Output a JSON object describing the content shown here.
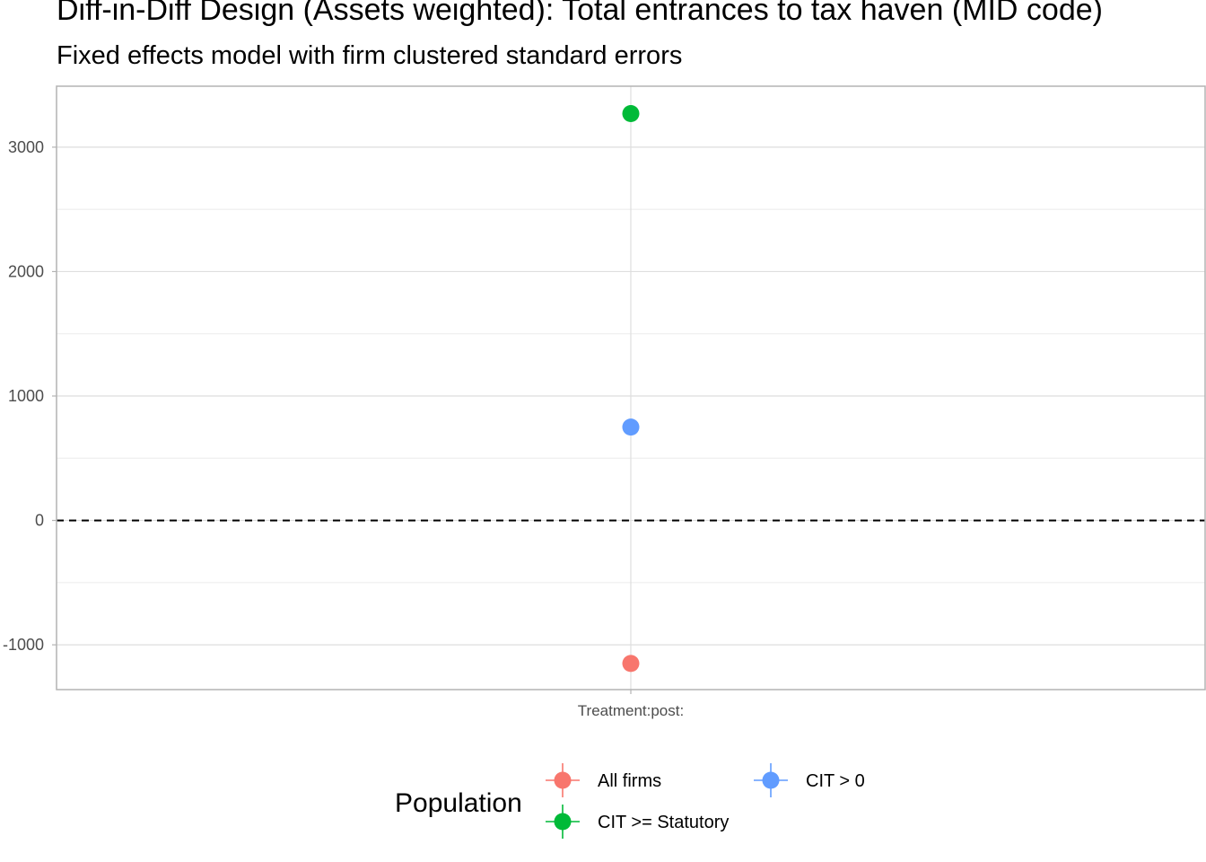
{
  "chart_data": {
    "type": "scatter",
    "title": "Diff-in-Diff Design (Assets weighted): Total entrances to tax haven (MID code)",
    "subtitle": "Fixed effects model with firm clustered standard errors",
    "xlabel": "",
    "ylabel": "",
    "categories": [
      "Treatment:post:"
    ],
    "ylim": [
      -1360,
      3490
    ],
    "y_ticks": [
      -1000,
      0,
      1000,
      2000,
      3000
    ],
    "y_tick_labels": [
      "-1000",
      "0",
      "1000",
      "2000",
      "3000"
    ],
    "reference_line": {
      "y": 0,
      "style": "dashed"
    },
    "grid": true,
    "legend_title": "Population",
    "legend_position": "bottom",
    "series": [
      {
        "name": "All firms",
        "color": "#F8766D",
        "values": [
          -1150
        ]
      },
      {
        "name": "CIT >= Statutory",
        "color": "#00BA38",
        "values": [
          3270
        ]
      },
      {
        "name": "CIT > 0",
        "color": "#619CFF",
        "values": [
          750
        ]
      }
    ]
  }
}
